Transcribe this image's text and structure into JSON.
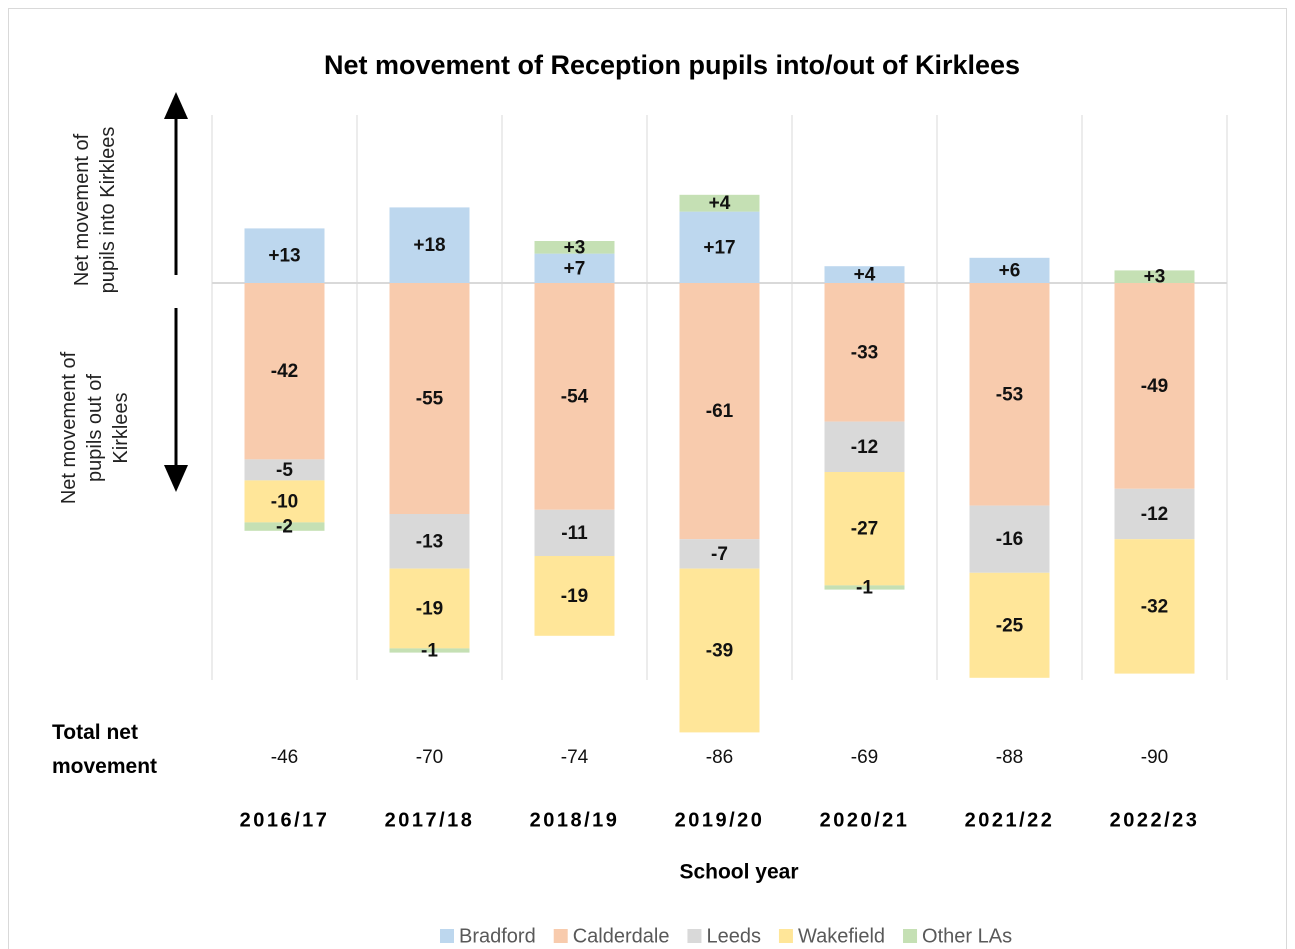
{
  "chart_data": {
    "type": "bar",
    "stacked": true,
    "title": "Net movement of Reception pupils into/out of Kirklees",
    "categories": [
      "2016/17",
      "2017/18",
      "2018/19",
      "2019/20",
      "2020/21",
      "2021/22",
      "2022/23"
    ],
    "series": [
      {
        "name": "Bradford",
        "color": "#bdd7ee",
        "values": [
          13,
          18,
          7,
          17,
          4,
          6,
          null
        ],
        "value_labels": [
          "+13",
          "+18",
          "+7",
          "+17",
          "+4",
          "+6",
          null
        ]
      },
      {
        "name": "Calderdale",
        "color": "#f8cbad",
        "values": [
          -42,
          -55,
          -54,
          -61,
          -33,
          -53,
          -49
        ],
        "value_labels": [
          "-42",
          "-55",
          "-54",
          "-61",
          "-33",
          "-53",
          "-49"
        ]
      },
      {
        "name": "Leeds",
        "color": "#d9d9d9",
        "values": [
          -5,
          -13,
          -11,
          -7,
          -12,
          -16,
          -12
        ],
        "value_labels": [
          "-5",
          "-13",
          "-11",
          "-7",
          "-12",
          "-16",
          "-12"
        ]
      },
      {
        "name": "Wakefield",
        "color": "#ffe699",
        "values": [
          -10,
          -19,
          -19,
          -39,
          -27,
          -25,
          -32
        ],
        "value_labels": [
          "-10",
          "-19",
          "-19",
          "-39",
          "-27",
          "-25",
          "-32"
        ]
      },
      {
        "name": "Other LAs",
        "color": "#c5e0b4",
        "values": [
          -2,
          -1,
          3,
          4,
          -1,
          null,
          3
        ],
        "value_labels": [
          "-2",
          "-1",
          "+3",
          "+4",
          "-1",
          null,
          "+3"
        ]
      }
    ],
    "totals_label": "Total net movement",
    "totals": [
      -46,
      -70,
      -74,
      -86,
      -69,
      -88,
      -90
    ],
    "annotations": [
      "Net movement of pupils into Kirklees",
      "Net movement of pupils out of Kirklees"
    ],
    "xlabel": "School year",
    "ylim": [
      -110,
      45
    ],
    "legend": "bottom"
  }
}
